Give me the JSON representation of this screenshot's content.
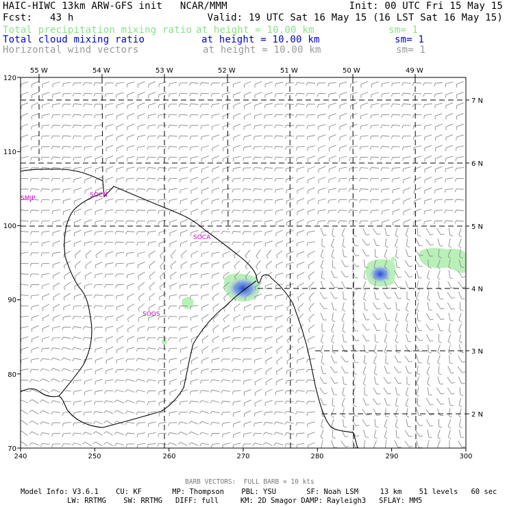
{
  "header": {
    "line1_left": "HAIC-HIWC 13km ARW-GFS init   NCAR/MMM",
    "line1_right": "Init: 00 UTC Fri 15 May 15",
    "line2_left": "Fcst:   43 h",
    "line2_right": "Valid: 19 UTC Sat 16 May 15 (16 LST Sat 16 May 15)",
    "fields": [
      {
        "name": "Total precipitation mixing ratio",
        "height": "at height = 10.00 km",
        "sm": "sm= 1",
        "color": "#88e088"
      },
      {
        "name": "Total cloud mixing ratio",
        "height": "at height = 10.00 km",
        "sm": "sm= 1",
        "color": "#0000cc"
      },
      {
        "name": "Horizontal wind vectors",
        "height": "at height = 10.00 km",
        "sm": "sm= 1",
        "color": "#999999"
      }
    ]
  },
  "map": {
    "top_lon_labels": [
      "55 W",
      "54 W",
      "53 W",
      "52 W",
      "51 W",
      "50 W",
      "49 W"
    ],
    "right_lat_labels": [
      "7 N",
      "6 N",
      "5 N",
      "4 N",
      "3 N",
      "2 N"
    ],
    "left_grid_labels": [
      "120",
      "110",
      "100",
      "90",
      "80",
      "70"
    ],
    "bottom_grid_labels": [
      "240",
      "250",
      "260",
      "270",
      "280",
      "290",
      "300"
    ],
    "station_labels": [
      "SMJP",
      "SOCN",
      "SOCA",
      "SOOS"
    ],
    "colors": {
      "coast": "#000000",
      "barb": "#8a8a8a",
      "precip": "#b8f0b8",
      "cloud": "#3a5ae8",
      "station": "#cc00cc"
    }
  },
  "footer": {
    "barb_legend": "BARB VECTORS:  FULL BARB = 10 kts",
    "model_info_1": "Model Info: V3.6.1    CU: KF       MP: Thompson    PBL: YSU       SF: Noah LSM     13 km    51 levels   60 sec",
    "model_info_2": "LW: RRTMG    SW: RRTMG   DIFF: full     KM: 2D Smagor DAMP: Rayleigh3   SFLAY: MM5"
  }
}
